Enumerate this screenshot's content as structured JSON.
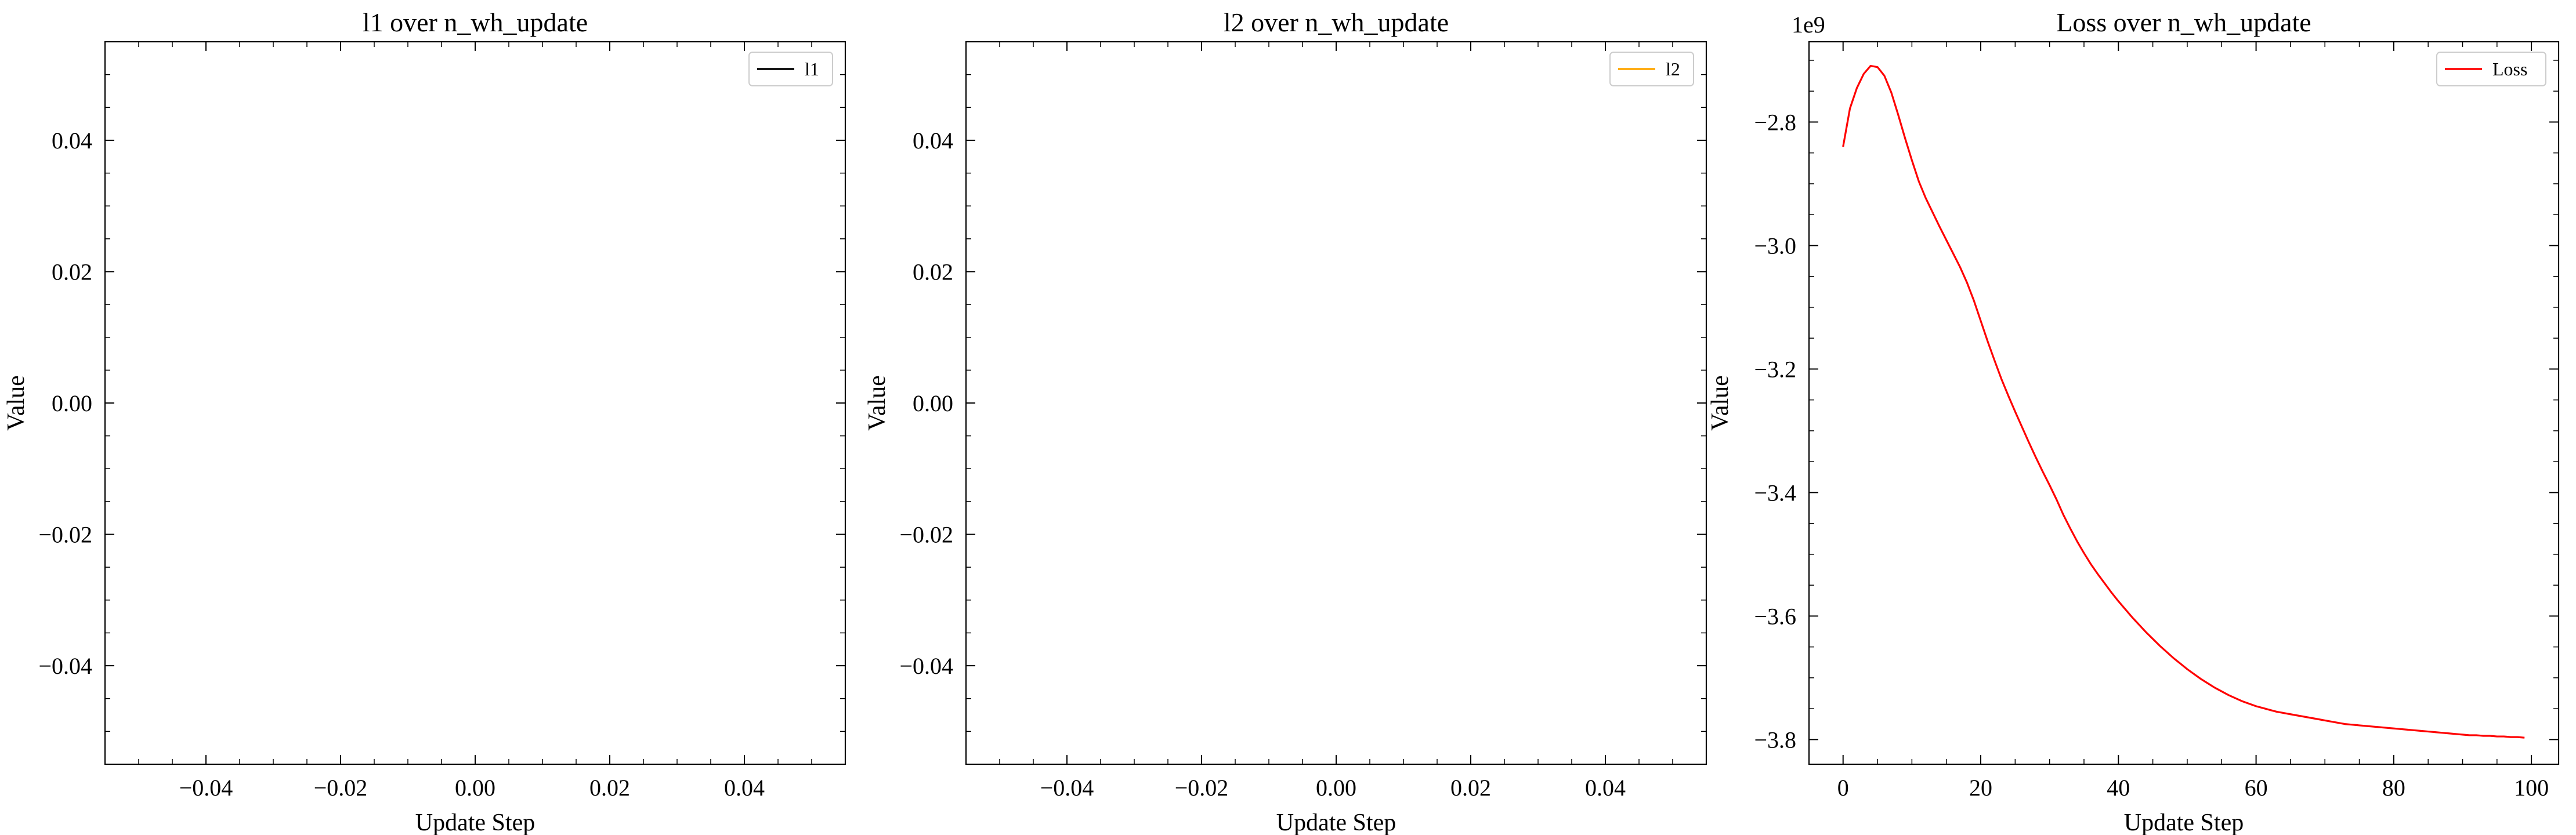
{
  "chart_data": [
    {
      "type": "line",
      "title": "l1 over n_wh_update",
      "xlabel": "Update Step",
      "ylabel": "Value",
      "xlim": [
        -0.055,
        0.055
      ],
      "ylim": [
        -0.055,
        0.055
      ],
      "x_ticks": [
        -0.04,
        -0.02,
        0.0,
        0.02,
        0.04
      ],
      "x_tick_labels": [
        "−0.04",
        "−0.02",
        "0.00",
        "0.02",
        "0.04"
      ],
      "y_ticks": [
        -0.04,
        -0.02,
        0.0,
        0.02,
        0.04
      ],
      "y_tick_labels": [
        "−0.04",
        "−0.02",
        "0.00",
        "0.02",
        "0.04"
      ],
      "offset_text": "",
      "legend_position": "upper right",
      "grid": false,
      "series": [
        {
          "name": "l1",
          "color": "#000000",
          "x": [],
          "y": []
        }
      ]
    },
    {
      "type": "line",
      "title": "l2 over n_wh_update",
      "xlabel": "Update Step",
      "ylabel": "Value",
      "xlim": [
        -0.055,
        0.055
      ],
      "ylim": [
        -0.055,
        0.055
      ],
      "x_ticks": [
        -0.04,
        -0.02,
        0.0,
        0.02,
        0.04
      ],
      "x_tick_labels": [
        "−0.04",
        "−0.02",
        "0.00",
        "0.02",
        "0.04"
      ],
      "y_ticks": [
        -0.04,
        -0.02,
        0.0,
        0.02,
        0.04
      ],
      "y_tick_labels": [
        "−0.04",
        "−0.02",
        "0.00",
        "0.02",
        "0.04"
      ],
      "offset_text": "",
      "legend_position": "upper right",
      "grid": false,
      "series": [
        {
          "name": "l2",
          "color": "#ffa500",
          "x": [],
          "y": []
        }
      ]
    },
    {
      "type": "line",
      "title": "Loss over n_wh_update",
      "xlabel": "Update Step",
      "ylabel": "Value",
      "xlim": [
        -4.95,
        103.95
      ],
      "ylim": [
        -3.84,
        -2.67
      ],
      "x_ticks": [
        0,
        20,
        40,
        60,
        80,
        100
      ],
      "x_tick_labels": [
        "0",
        "20",
        "40",
        "60",
        "80",
        "100"
      ],
      "y_ticks": [
        -3.8,
        -3.6,
        -3.4,
        -3.2,
        -3.0,
        -2.8
      ],
      "y_tick_labels": [
        "−3.8",
        "−3.6",
        "−3.4",
        "−3.2",
        "−3.0",
        "−2.8"
      ],
      "offset_text": "1e9",
      "legend_position": "upper right",
      "grid": false,
      "series": [
        {
          "name": "Loss",
          "color": "#ff0000",
          "x": [
            0,
            1,
            2,
            3,
            4,
            5,
            6,
            7,
            8,
            9,
            10,
            11,
            12,
            13,
            14,
            15,
            16,
            17,
            18,
            19,
            20,
            21,
            22,
            23,
            24,
            25,
            26,
            27,
            28,
            29,
            30,
            31,
            32,
            33,
            34,
            35,
            36,
            37,
            38,
            39,
            40,
            41,
            42,
            43,
            44,
            45,
            46,
            47,
            48,
            49,
            50,
            51,
            52,
            53,
            54,
            55,
            56,
            57,
            58,
            59,
            60,
            61,
            62,
            63,
            64,
            65,
            66,
            67,
            68,
            69,
            70,
            71,
            72,
            73,
            74,
            75,
            76,
            77,
            78,
            79,
            80,
            81,
            82,
            83,
            84,
            85,
            86,
            87,
            88,
            89,
            90,
            91,
            92,
            93,
            94,
            95,
            96,
            97,
            98,
            99
          ],
          "y": [
            -2.84,
            -2.778,
            -2.745,
            -2.722,
            -2.709,
            -2.711,
            -2.725,
            -2.752,
            -2.788,
            -2.826,
            -2.862,
            -2.896,
            -2.923,
            -2.946,
            -2.969,
            -2.991,
            -3.013,
            -3.035,
            -3.06,
            -3.089,
            -3.122,
            -3.155,
            -3.186,
            -3.216,
            -3.243,
            -3.269,
            -3.294,
            -3.319,
            -3.343,
            -3.366,
            -3.388,
            -3.411,
            -3.436,
            -3.458,
            -3.479,
            -3.498,
            -3.516,
            -3.532,
            -3.547,
            -3.562,
            -3.576,
            -3.589,
            -3.602,
            -3.614,
            -3.626,
            -3.637,
            -3.648,
            -3.658,
            -3.668,
            -3.677,
            -3.686,
            -3.694,
            -3.702,
            -3.709,
            -3.716,
            -3.722,
            -3.728,
            -3.733,
            -3.738,
            -3.742,
            -3.746,
            -3.749,
            -3.752,
            -3.755,
            -3.757,
            -3.759,
            -3.761,
            -3.763,
            -3.765,
            -3.767,
            -3.769,
            -3.771,
            -3.773,
            -3.775,
            -3.776,
            -3.777,
            -3.778,
            -3.779,
            -3.78,
            -3.781,
            -3.782,
            -3.783,
            -3.784,
            -3.785,
            -3.786,
            -3.787,
            -3.788,
            -3.789,
            -3.79,
            -3.791,
            -3.792,
            -3.793,
            -3.793,
            -3.794,
            -3.794,
            -3.795,
            -3.795,
            -3.796,
            -3.796,
            -3.797
          ]
        }
      ]
    }
  ]
}
